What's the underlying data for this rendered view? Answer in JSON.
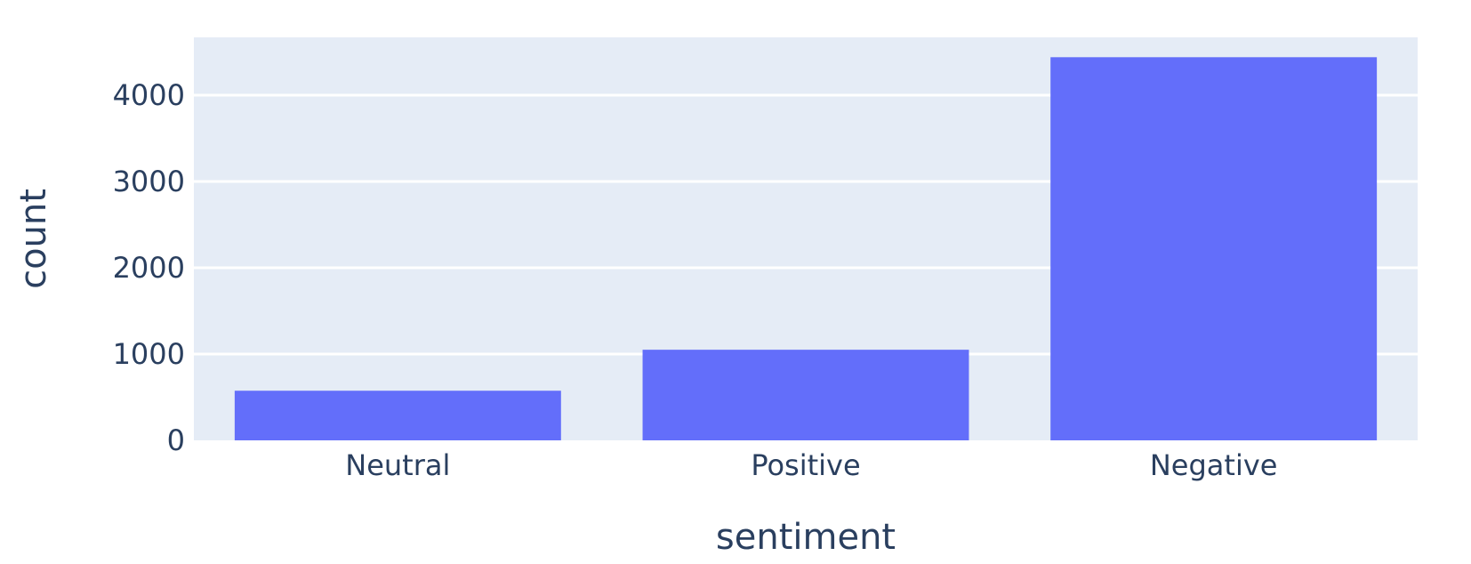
{
  "chart_data": {
    "type": "bar",
    "categories": [
      "Neutral",
      "Positive",
      "Negative"
    ],
    "values": [
      575,
      1050,
      4440
    ],
    "xlabel": "sentiment",
    "ylabel": "count",
    "ylim": [
      0,
      4670
    ],
    "yticks": [
      0,
      1000,
      2000,
      3000,
      4000
    ],
    "grid": true,
    "legend": "none",
    "colors": {
      "bar": "#636efa",
      "plot_background": "#e5ecf6",
      "gridline": "#ffffff",
      "text": "#2a3f5f"
    }
  }
}
